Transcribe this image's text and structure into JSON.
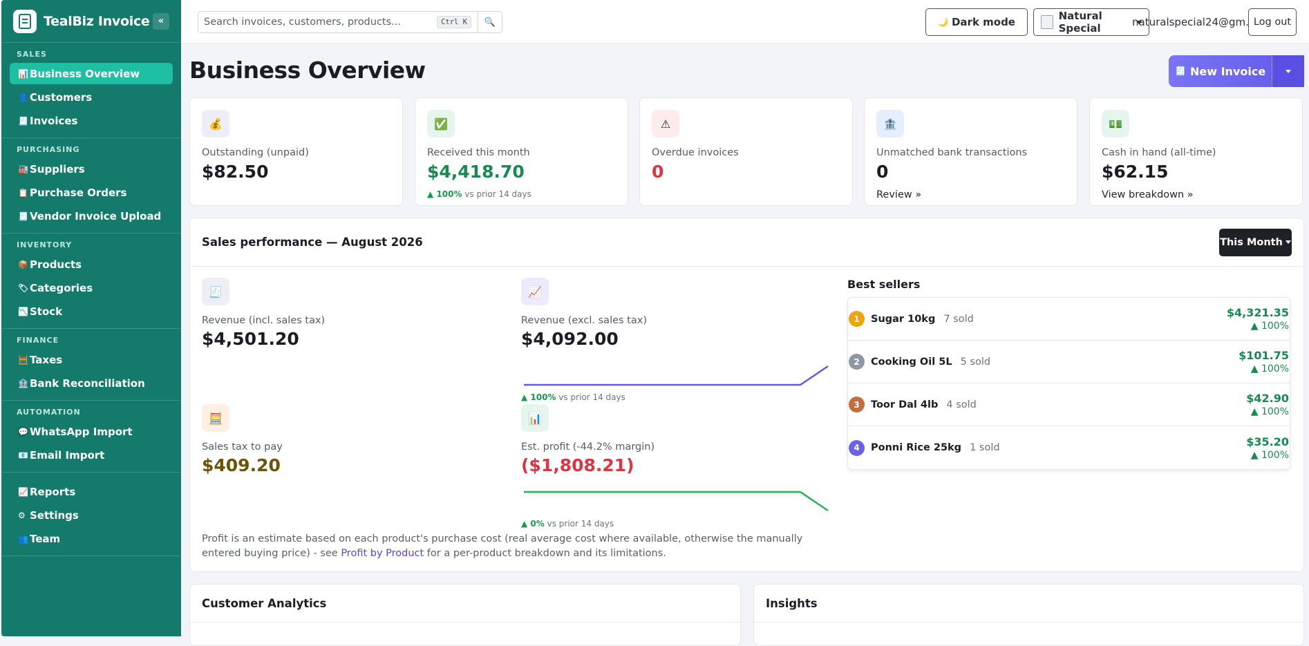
{
  "app": {
    "name": "TealBiz Invoice",
    "collapse_label": "«"
  },
  "sidebar": {
    "sections": [
      {
        "heading": "SALES",
        "items": [
          {
            "label": "Business Overview",
            "icon": "📊",
            "icon_name": "chart-icon",
            "active": true
          },
          {
            "label": "Customers",
            "icon": "👤",
            "icon_name": "customers-icon"
          },
          {
            "label": "Invoices",
            "icon": "🧾",
            "icon_name": "invoice-icon"
          }
        ]
      },
      {
        "heading": "PURCHASING",
        "items": [
          {
            "label": "Suppliers",
            "icon": "🏭",
            "icon_name": "factory-icon"
          },
          {
            "label": "Purchase Orders",
            "icon": "📋",
            "icon_name": "clipboard-icon"
          },
          {
            "label": "Vendor Invoice Upload",
            "icon": "🧾",
            "icon_name": "receipt-icon"
          }
        ]
      },
      {
        "heading": "INVENTORY",
        "items": [
          {
            "label": "Products",
            "icon": "📦",
            "icon_name": "package-icon"
          },
          {
            "label": "Categories",
            "icon": "🏷",
            "icon_name": "tag-icon"
          },
          {
            "label": "Stock",
            "icon": "📉",
            "icon_name": "stock-chart-icon"
          }
        ]
      },
      {
        "heading": "FINANCE",
        "items": [
          {
            "label": "Taxes",
            "icon": "🧮",
            "icon_name": "abacus-icon"
          },
          {
            "label": "Bank Reconciliation",
            "icon": "🏦",
            "icon_name": "bank-icon"
          }
        ]
      },
      {
        "heading": "AUTOMATION",
        "items": [
          {
            "label": "WhatsApp Import",
            "icon": "💬",
            "icon_name": "chat-bubble-icon"
          },
          {
            "label": "Email Import",
            "icon": "📧",
            "icon_name": "email-icon"
          }
        ]
      },
      {
        "heading": "",
        "items": [
          {
            "label": "Reports",
            "icon": "📈",
            "icon_name": "trend-chart-icon"
          },
          {
            "label": "Settings",
            "icon": "⚙",
            "icon_name": "gear-icon"
          },
          {
            "label": "Team",
            "icon": "👥",
            "icon_name": "team-icon"
          }
        ]
      }
    ]
  },
  "topbar": {
    "search_placeholder": "Search invoices, customers, products...",
    "search_shortcut": "Ctrl K",
    "search_icon": "🔍",
    "dark_mode_icon": "🌙",
    "dark_mode_label": "Dark mode",
    "business_name": "Natural Special",
    "user_email": "naturalspecial24@gm...",
    "logout_label": "Log out"
  },
  "page": {
    "title": "Business Overview",
    "new_invoice_icon": "🧾",
    "new_invoice_label": "New Invoice"
  },
  "kpis": [
    {
      "icon": "💰",
      "icon_name": "money-bag-icon",
      "bg": "#eeeefa",
      "label": "Outstanding (unpaid)",
      "value": "$82.50",
      "color": "#1a1d24"
    },
    {
      "icon": "✅",
      "icon_name": "check-icon",
      "bg": "#e6f6ec",
      "label": "Received this month",
      "value": "$4,418.70",
      "color": "#178a4f",
      "delta": "▲ 100%",
      "delta_text": " vs prior 14 days"
    },
    {
      "icon": "⚠",
      "icon_name": "warning-icon",
      "bg": "#fdeceb",
      "label": "Overdue invoices",
      "value": "0",
      "color": "#dc3545"
    },
    {
      "icon": "🏦",
      "icon_name": "bank-icon",
      "bg": "#e6eefb",
      "label": "Unmatched bank transactions",
      "value": "0",
      "color": "#1a1d24",
      "link": "Review »"
    },
    {
      "icon": "💵",
      "icon_name": "cash-icon",
      "bg": "#e6f6ec",
      "label": "Cash in hand (all-time)",
      "value": "$62.15",
      "color": "#1a1d24",
      "link": "View breakdown »"
    }
  ],
  "sales": {
    "title": "Sales performance — August 2026",
    "period_label": "This Month",
    "metrics": [
      {
        "icon": "🧾",
        "icon_name": "receipt-icon",
        "bg": "#eeeef5",
        "label": "Revenue (incl. sales tax)",
        "value": "$4,501.20",
        "color": "#1a1d24"
      },
      {
        "icon": "📈",
        "icon_name": "trend-chart-icon",
        "bg": "#ecebfb",
        "label": "Revenue (excl. sales tax)",
        "value": "$4,092.00",
        "color": "#1a1d24",
        "delta": "▲ 100%",
        "delta_text": " vs prior 14 days",
        "spark_color": "#6259e8"
      },
      {
        "icon": "🧮",
        "icon_name": "abacus-icon",
        "bg": "#fdf0e2",
        "label": "Sales tax to pay",
        "value": "$409.20",
        "color": "#6b5406"
      },
      {
        "icon": "📊",
        "icon_name": "bar-chart-icon",
        "bg": "#e6f6ec",
        "label": "Est. profit (-44.2% margin)",
        "value": "($1,808.21)",
        "color": "#dc3545",
        "delta": "▲ 0%",
        "delta_text": " vs prior 14 days",
        "spark_color": "#22b356"
      }
    ],
    "note_pre": "Profit is an estimate based on each product's purchase cost (real average cost where available, otherwise the manually entered buying price) - see ",
    "note_link": "Profit by Product",
    "note_post": " for a per-product breakdown and its limitations.",
    "best_sellers_title": "Best sellers",
    "best_sellers": [
      {
        "rank": "1",
        "rank_color": "#f0a30a",
        "name": "Sugar 10kg",
        "sold": "7 sold",
        "amount": "$4,321.35",
        "pct": "▲ 100%"
      },
      {
        "rank": "2",
        "rank_color": "#8e97a6",
        "name": "Cooking Oil 5L",
        "sold": "5 sold",
        "amount": "$101.75",
        "pct": "▲ 100%"
      },
      {
        "rank": "3",
        "rank_color": "#c0703f",
        "name": "Toor Dal 4lb",
        "sold": "4 sold",
        "amount": "$42.90",
        "pct": "▲ 100%"
      },
      {
        "rank": "4",
        "rank_color": "#6a63ea",
        "name": "Ponni Rice 25kg",
        "sold": "1 sold",
        "amount": "$35.20",
        "pct": "▲ 100%"
      }
    ]
  },
  "bottom": {
    "customer_analytics_title": "Customer Analytics",
    "insights_title": "Insights"
  }
}
